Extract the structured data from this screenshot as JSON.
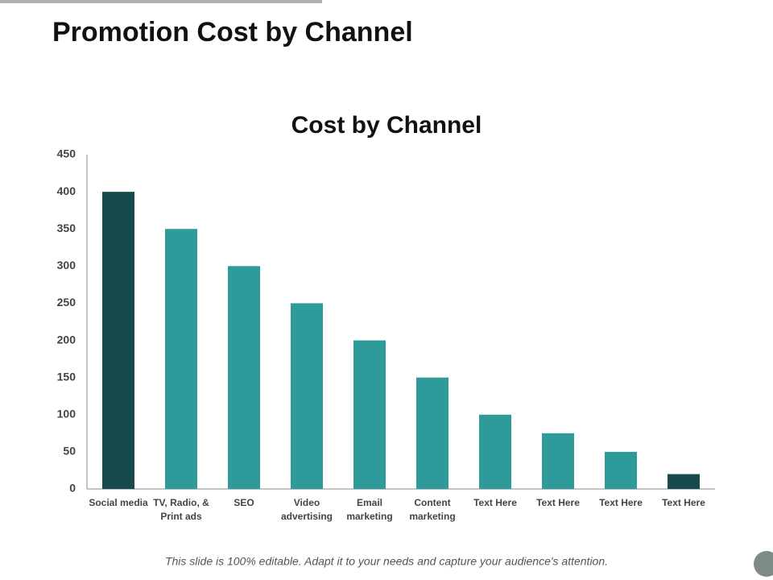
{
  "slide_title": "Promotion Cost by Channel",
  "footnote": "This slide is 100% editable. Adapt it to your needs and capture your audience's attention.",
  "chart_data": {
    "type": "bar",
    "title": "Cost by Channel",
    "categories": [
      "Social media",
      "TV, Radio, & Print ads",
      "SEO",
      "Video advertising",
      "Email marketing",
      "Content marketing",
      "Text Here",
      "Text Here",
      "Text Here",
      "Text Here"
    ],
    "values": [
      400,
      350,
      300,
      250,
      200,
      150,
      100,
      75,
      50,
      20
    ],
    "colors": [
      "#174a4b",
      "#2e9a9a",
      "#2e9a9a",
      "#2e9a9a",
      "#2e9a9a",
      "#2e9a9a",
      "#2e9a9a",
      "#2e9a9a",
      "#2e9a9a",
      "#174a4b"
    ],
    "ylim": [
      0,
      450
    ],
    "yticks": [
      0,
      50,
      100,
      150,
      200,
      250,
      300,
      350,
      400,
      450
    ],
    "grid": false
  }
}
